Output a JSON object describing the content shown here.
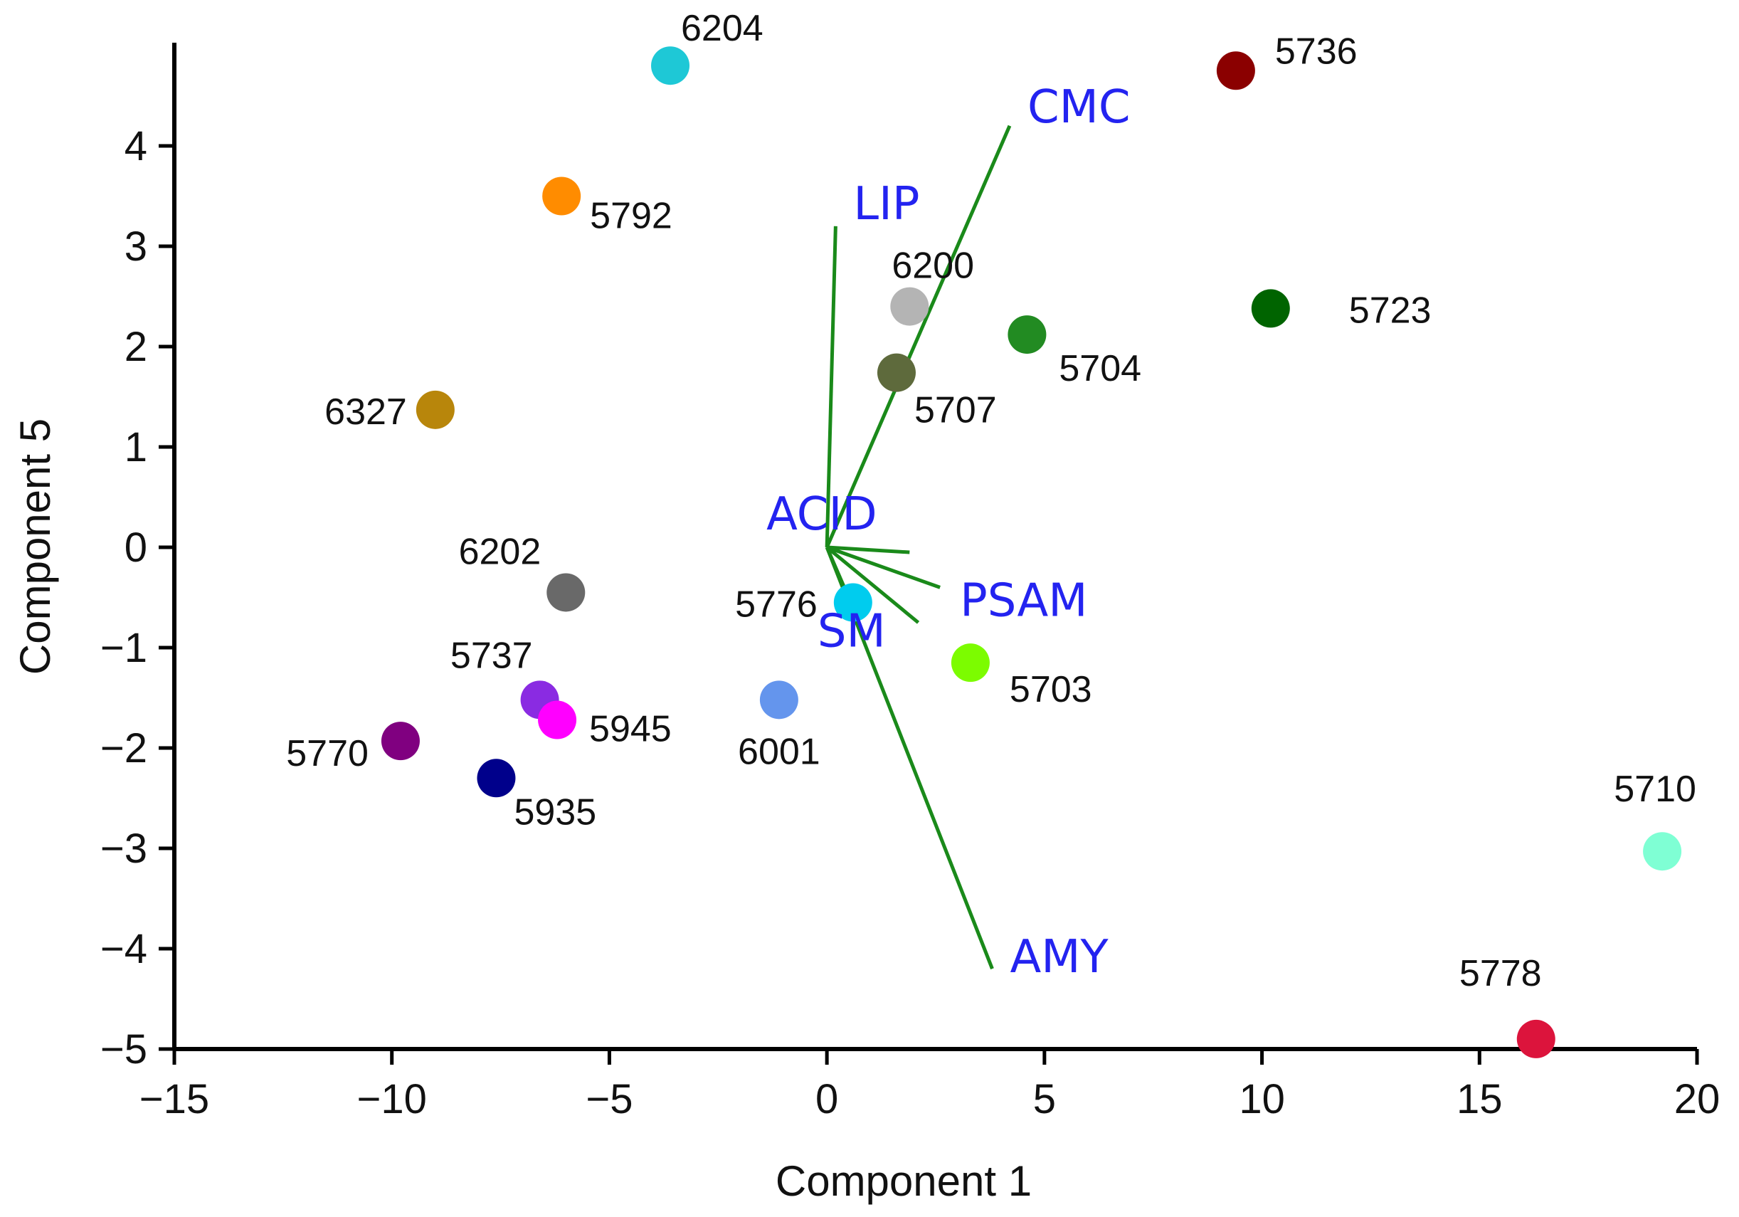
{
  "chart_data": {
    "type": "scatter",
    "title": "",
    "xlabel": "Component  1",
    "ylabel": "Component  5",
    "xlim": [
      -15,
      20
    ],
    "ylim": [
      -5,
      5
    ],
    "x_ticks": [
      -15,
      -10,
      -5,
      0,
      5,
      10,
      15,
      20
    ],
    "y_ticks": [
      -5,
      -4,
      -3,
      -2,
      -1,
      0,
      1,
      2,
      3,
      4
    ],
    "x_tick_labels": [
      "−15",
      "−10",
      "−5",
      "0",
      "5",
      "10",
      "15",
      "20"
    ],
    "y_tick_labels": [
      "−5",
      "−4",
      "−3",
      "−2",
      "−1",
      "0",
      "1",
      "2",
      "3",
      "4"
    ],
    "grid": false,
    "points": [
      {
        "label": "6204",
        "x": -3.6,
        "y": 4.8,
        "color": "#1ec8d6"
      },
      {
        "label": "5736",
        "x": 9.4,
        "y": 4.75,
        "color": "#8b0000"
      },
      {
        "label": "5792",
        "x": -6.1,
        "y": 3.5,
        "color": "#ff8c00"
      },
      {
        "label": "6200",
        "x": 1.9,
        "y": 2.4,
        "color": "#b4b4b4"
      },
      {
        "label": "5704",
        "x": 4.6,
        "y": 2.12,
        "color": "#228b22"
      },
      {
        "label": "5723",
        "x": 10.2,
        "y": 2.38,
        "color": "#006400"
      },
      {
        "label": "5707",
        "x": 1.6,
        "y": 1.74,
        "color": "#5e6a3c"
      },
      {
        "label": "6327",
        "x": -9.0,
        "y": 1.37,
        "color": "#b8860b"
      },
      {
        "label": "6202",
        "x": -6.0,
        "y": -0.45,
        "color": "#696969"
      },
      {
        "label": "5776",
        "x": 0.6,
        "y": -0.55,
        "color": "#00ccee"
      },
      {
        "label": "5703",
        "x": 3.3,
        "y": -1.15,
        "color": "#7cfc00"
      },
      {
        "label": "6001",
        "x": -1.1,
        "y": -1.52,
        "color": "#6495ed"
      },
      {
        "label": "5737",
        "x": -6.6,
        "y": -1.52,
        "color": "#8a2be2"
      },
      {
        "label": "5945",
        "x": -6.2,
        "y": -1.72,
        "color": "#ff00ff"
      },
      {
        "label": "5770",
        "x": -9.8,
        "y": -1.93,
        "color": "#800080"
      },
      {
        "label": "5935",
        "x": -7.6,
        "y": -2.3,
        "color": "#00008b"
      },
      {
        "label": "5710",
        "x": 19.2,
        "y": -3.03,
        "color": "#7fffd4"
      },
      {
        "label": "5778",
        "x": 16.3,
        "y": -4.9,
        "color": "#dc143c"
      }
    ],
    "vectors": [
      {
        "label": "CMC",
        "x": 4.2,
        "y": 4.2
      },
      {
        "label": "LIP",
        "x": 0.2,
        "y": 3.2
      },
      {
        "label": "ACID",
        "x": 0.0,
        "y": 0.0
      },
      {
        "label": "PSAM",
        "x": 2.6,
        "y": -0.4
      },
      {
        "label": "SM",
        "x": 0.6,
        "y": -0.6
      },
      {
        "label": "AMY",
        "x": 3.8,
        "y": -4.2
      }
    ],
    "extra_vector_tips": [
      {
        "x": 1.9,
        "y": -0.05
      },
      {
        "x": 2.1,
        "y": -0.75
      }
    ],
    "point_color_default": "#000000",
    "vector_color": "#1a8a1a",
    "vector_label_color": "#2323f0",
    "axis_color": "#000000"
  }
}
